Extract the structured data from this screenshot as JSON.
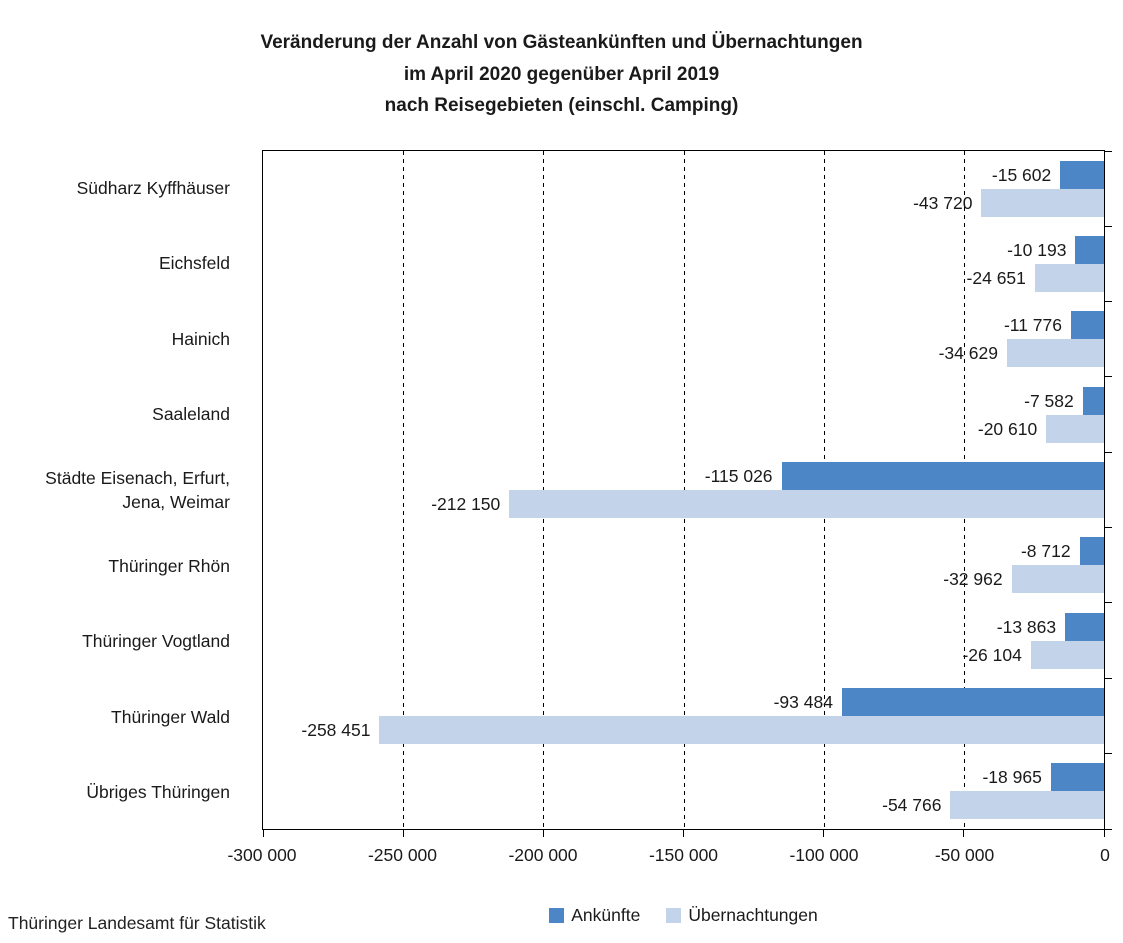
{
  "title": {
    "line1": "Veränderung der Anzahl von Gästeankünften und Übernachtungen",
    "line2": "im April 2020 gegenüber April 2019",
    "line3": "nach Reisegebieten (einschl. Camping)"
  },
  "footer": "Thüringer Landesamt für Statistik",
  "colors": {
    "ankuenfte": "#4D86C6",
    "uebernachtungen": "#C3D4EA"
  },
  "chart_data": {
    "type": "bar",
    "orientation": "horizontal",
    "title": "Veränderung der Anzahl von Gästeankünften und Übernachtungen im April 2020 gegenüber April 2019 nach Reisegebieten (einschl. Camping)",
    "categories": [
      "Südharz Kyffhäuser",
      "Eichsfeld",
      "Hainich",
      "Saaleland",
      "Städte Eisenach, Erfurt, Jena, Weimar",
      "Thüringer Rhön",
      "Thüringer Vogtland",
      "Thüringer Wald",
      "Übriges Thüringen"
    ],
    "series": [
      {
        "name": "Ankünfte",
        "color": "#4D86C6",
        "values": [
          -15602,
          -10193,
          -11776,
          -7582,
          -115026,
          -8712,
          -13863,
          -93484,
          -18965
        ],
        "labels": [
          "-15 602",
          "-10 193",
          "-11 776",
          "-7 582",
          "-115 026",
          "-8 712",
          "-13 863",
          "-93 484",
          "-18 965"
        ]
      },
      {
        "name": "Übernachtungen",
        "color": "#C3D4EA",
        "values": [
          -43720,
          -24651,
          -34629,
          -20610,
          -212150,
          -32962,
          -26104,
          -258451,
          -54766
        ],
        "labels": [
          "-43 720",
          "-24 651",
          "-34 629",
          "-20 610",
          "-212 150",
          "-32 962",
          "-26 104",
          "-258 451",
          "-54 766"
        ]
      }
    ],
    "xlabel": "",
    "ylabel": "",
    "xlim": [
      -300000,
      0
    ],
    "xticks": {
      "values": [
        -300000,
        -250000,
        -200000,
        -150000,
        -100000,
        -50000,
        0
      ],
      "labels": [
        "-300 000",
        "-250 000",
        "-200 000",
        "-150 000",
        "-100 000",
        "-50 000",
        "0"
      ]
    },
    "grid": "vertical-dashed",
    "legend_position": "bottom-center",
    "source": "Thüringer Landesamt für Statistik"
  }
}
